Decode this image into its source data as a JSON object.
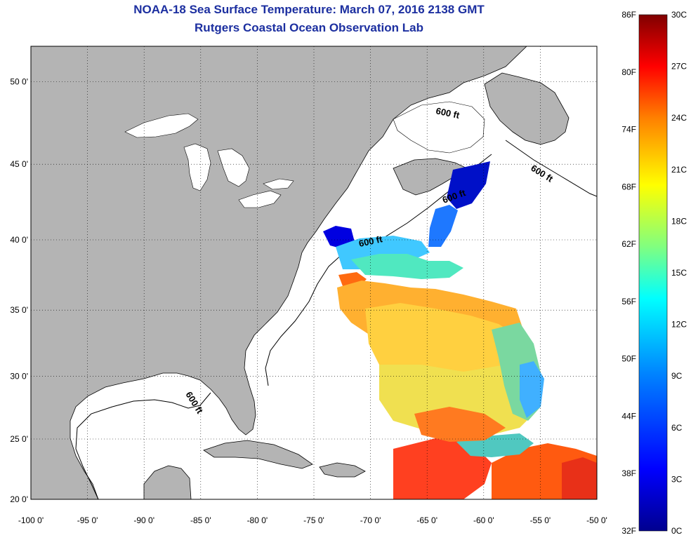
{
  "header": {
    "title": "NOAA-18 Sea Surface Temperature:  March 07, 2016 2138 GMT",
    "subtitle": "Rutgers Coastal Ocean Observation Lab"
  },
  "map": {
    "lon_range": [
      -100,
      -50
    ],
    "lat_range": [
      20,
      52
    ],
    "lon_labels": [
      "-100 0'",
      "-95 0'",
      "-90 0'",
      "-85 0'",
      "-80 0'",
      "-75 0'",
      "-70 0'",
      "-65 0'",
      "-60 0'",
      "-55 0'",
      "-50 0'"
    ],
    "lat_labels": [
      "50 0'",
      "45 0'",
      "40 0'",
      "35 0'",
      "30 0'",
      "25 0'",
      "20 0'"
    ],
    "contour_labels": [
      "600 ft",
      "600 ft",
      "600 ft",
      "600 ft",
      "600 ft"
    ],
    "land_color": "#b4b4b4",
    "ocean_color": "#ffffff"
  },
  "colorbar": {
    "f_labels": [
      "86F",
      "80F",
      "74F",
      "68F",
      "62F",
      "56F",
      "50F",
      "44F",
      "38F",
      "32F"
    ],
    "c_labels": [
      "30C",
      "27C",
      "24C",
      "21C",
      "18C",
      "15C",
      "12C",
      "9C",
      "6C",
      "3C",
      "0C"
    ],
    "colors": [
      "#00008f",
      "#0000ff",
      "#0080ff",
      "#00ffff",
      "#80ff80",
      "#ffff00",
      "#ff8000",
      "#ff0000",
      "#800000"
    ]
  }
}
